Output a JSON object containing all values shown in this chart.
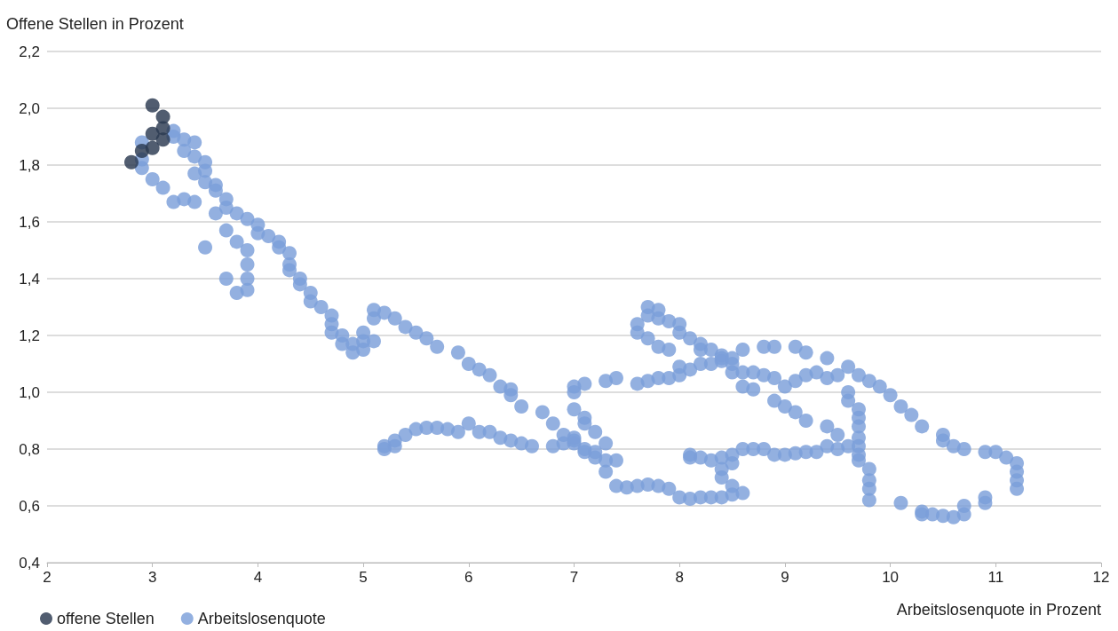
{
  "chart_data": {
    "type": "scatter",
    "xlabel": "Arbeitslosenquote in Prozent",
    "ylabel": "Offene Stellen in Prozent",
    "xlim": [
      2,
      12
    ],
    "xticks": [
      2,
      3,
      4,
      5,
      6,
      7,
      8,
      9,
      10,
      11,
      12
    ],
    "ylim": [
      0.4,
      2.2
    ],
    "yticks": [
      {
        "value": 0.4,
        "label": "0,4"
      },
      {
        "value": 0.6,
        "label": "0,6"
      },
      {
        "value": 0.8,
        "label": "0,8"
      },
      {
        "value": 1.0,
        "label": "1,0"
      },
      {
        "value": 1.2,
        "label": "1,2"
      },
      {
        "value": 1.4,
        "label": "1,4"
      },
      {
        "value": 1.6,
        "label": "1,6"
      },
      {
        "value": 1.8,
        "label": "1,8"
      },
      {
        "value": 2.0,
        "label": "2,0"
      },
      {
        "value": 2.2,
        "label": "2,2"
      }
    ],
    "grid": "y",
    "legend": "bottom left",
    "marker": "circle",
    "series": [
      {
        "name": "offene Stellen",
        "color": "#2b3950",
        "x": [
          2.8,
          2.9,
          3.0,
          3.0,
          3.1,
          3.1,
          3.1,
          3.0
        ],
        "values": [
          1.81,
          1.85,
          1.86,
          2.01,
          1.97,
          1.93,
          1.89,
          1.91
        ]
      },
      {
        "name": "Arbeitslosenquote",
        "color": "#7b9fd9",
        "x": [
          2.9,
          2.9,
          2.9,
          3.0,
          3.1,
          3.2,
          3.2,
          3.2,
          3.3,
          3.3,
          3.3,
          3.4,
          3.4,
          3.4,
          3.4,
          3.5,
          3.5,
          3.5,
          3.5,
          3.6,
          3.6,
          3.6,
          3.7,
          3.7,
          3.7,
          3.7,
          3.8,
          3.8,
          3.8,
          3.9,
          3.9,
          3.9,
          3.9,
          3.9,
          4.0,
          4.0,
          4.1,
          4.2,
          4.2,
          4.3,
          4.3,
          4.3,
          4.4,
          4.4,
          4.5,
          4.5,
          4.6,
          4.7,
          4.7,
          4.7,
          4.8,
          4.8,
          4.9,
          4.9,
          5.0,
          5.0,
          5.0,
          5.1,
          5.1,
          5.1,
          5.2,
          5.3,
          5.4,
          5.5,
          5.6,
          5.7,
          5.9,
          6.0,
          6.1,
          6.2,
          6.3,
          6.4,
          6.4,
          6.5,
          6.7,
          6.8,
          6.9,
          7.0,
          7.1,
          7.2,
          7.3,
          7.3,
          7.4,
          5.2,
          5.2,
          5.3,
          5.3,
          5.4,
          5.5,
          5.6,
          5.7,
          5.8,
          5.9,
          6.0,
          6.1,
          6.2,
          6.3,
          6.4,
          6.5,
          6.6,
          6.8,
          6.9,
          7.0,
          7.0,
          7.1,
          7.2,
          7.3,
          7.0,
          7.0,
          7.0,
          7.1,
          7.1,
          7.1,
          7.2,
          7.3,
          7.4,
          7.4,
          7.5,
          7.6,
          7.7,
          7.8,
          7.9,
          8.0,
          8.1,
          8.2,
          8.3,
          8.4,
          8.5,
          8.5,
          8.6,
          7.6,
          7.7,
          7.8,
          7.9,
          8.0,
          8.0,
          8.1,
          8.2,
          8.3,
          8.4,
          8.5,
          8.5,
          8.6,
          8.7,
          8.8,
          8.9,
          9.0,
          9.1,
          9.2,
          9.3,
          9.4,
          9.5,
          9.6,
          9.7,
          9.8,
          9.9,
          10.0,
          10.1,
          10.2,
          10.3,
          10.5,
          10.5,
          10.6,
          10.7,
          10.9,
          11.0,
          11.1,
          11.2,
          11.2,
          11.2,
          11.2,
          7.6,
          7.6,
          7.7,
          7.7,
          7.7,
          7.8,
          7.8,
          7.8,
          7.9,
          7.9,
          8.0,
          8.0,
          8.1,
          8.2,
          8.2,
          8.3,
          8.4,
          8.4,
          8.5,
          8.6,
          8.6,
          8.7,
          8.8,
          8.9,
          8.9,
          9.0,
          9.1,
          9.1,
          9.2,
          9.2,
          9.4,
          9.4,
          9.5,
          9.6,
          9.6,
          9.7,
          9.7,
          9.7,
          9.7,
          9.7,
          9.7,
          9.7,
          9.8,
          9.8,
          9.8,
          9.8,
          8.1,
          8.1,
          8.2,
          8.3,
          8.4,
          8.4,
          8.4,
          8.5,
          8.5,
          8.6,
          8.7,
          8.8,
          8.9,
          9.0,
          9.1,
          9.2,
          9.3,
          9.4,
          9.5,
          9.6,
          10.1,
          10.3,
          10.3,
          10.4,
          10.5,
          10.6,
          10.7,
          10.7,
          10.9,
          10.9
        ],
        "values": [
          1.79,
          1.82,
          1.88,
          1.75,
          1.72,
          1.67,
          1.9,
          1.92,
          1.89,
          1.85,
          1.68,
          1.88,
          1.83,
          1.77,
          1.67,
          1.81,
          1.78,
          1.74,
          1.51,
          1.73,
          1.71,
          1.63,
          1.68,
          1.65,
          1.57,
          1.4,
          1.63,
          1.53,
          1.35,
          1.61,
          1.5,
          1.45,
          1.4,
          1.36,
          1.59,
          1.56,
          1.55,
          1.53,
          1.51,
          1.49,
          1.45,
          1.43,
          1.4,
          1.38,
          1.35,
          1.32,
          1.3,
          1.27,
          1.24,
          1.21,
          1.2,
          1.17,
          1.17,
          1.14,
          1.21,
          1.18,
          1.15,
          1.29,
          1.26,
          1.18,
          1.28,
          1.26,
          1.23,
          1.21,
          1.19,
          1.16,
          1.14,
          1.1,
          1.08,
          1.06,
          1.02,
          1.01,
          0.99,
          0.95,
          0.93,
          0.89,
          0.85,
          0.83,
          0.8,
          0.77,
          0.72,
          0.82,
          0.76,
          0.8,
          0.81,
          0.81,
          0.83,
          0.85,
          0.87,
          0.875,
          0.875,
          0.87,
          0.86,
          0.89,
          0.86,
          0.86,
          0.84,
          0.83,
          0.82,
          0.81,
          0.81,
          0.82,
          0.82,
          0.84,
          0.79,
          0.79,
          0.76,
          1.02,
          1.0,
          0.94,
          1.03,
          0.91,
          0.89,
          0.86,
          1.04,
          1.05,
          0.67,
          0.665,
          0.67,
          0.675,
          0.67,
          0.66,
          0.63,
          0.625,
          0.63,
          0.63,
          0.63,
          0.64,
          0.67,
          0.645,
          1.03,
          1.04,
          1.05,
          1.05,
          1.06,
          1.09,
          1.08,
          1.1,
          1.1,
          1.11,
          1.1,
          1.07,
          1.07,
          1.07,
          1.06,
          1.05,
          1.02,
          1.04,
          1.06,
          1.07,
          1.05,
          1.06,
          1.09,
          1.06,
          1.04,
          1.02,
          0.99,
          0.95,
          0.92,
          0.88,
          0.85,
          0.83,
          0.81,
          0.8,
          0.79,
          0.79,
          0.77,
          0.75,
          0.72,
          0.69,
          0.66,
          1.24,
          1.21,
          1.3,
          1.27,
          1.19,
          1.29,
          1.26,
          1.16,
          1.25,
          1.15,
          1.24,
          1.21,
          1.19,
          1.17,
          1.15,
          1.15,
          1.13,
          1.12,
          1.12,
          1.15,
          1.02,
          1.01,
          1.16,
          1.16,
          0.97,
          0.95,
          1.16,
          0.93,
          1.14,
          0.9,
          1.12,
          0.88,
          0.85,
          1.0,
          0.97,
          0.94,
          0.91,
          0.88,
          0.84,
          0.81,
          0.78,
          0.76,
          0.73,
          0.69,
          0.66,
          0.62,
          0.78,
          0.77,
          0.77,
          0.76,
          0.77,
          0.73,
          0.7,
          0.75,
          0.78,
          0.8,
          0.8,
          0.8,
          0.78,
          0.78,
          0.785,
          0.79,
          0.79,
          0.81,
          0.8,
          0.81,
          0.61,
          0.58,
          0.57,
          0.57,
          0.565,
          0.56,
          0.57,
          0.6,
          0.63,
          0.61
        ]
      }
    ]
  }
}
